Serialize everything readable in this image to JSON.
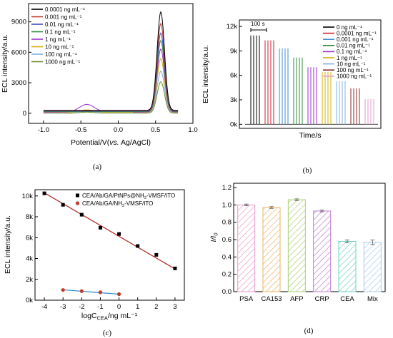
{
  "colors": {
    "black": "#000000",
    "red": "#c0392b",
    "blue": "#3c4bc9",
    "green": "#2e8b3a",
    "purple": "#9b30d0",
    "yellow": "#d4b000",
    "lightblue": "#7fb0e0",
    "brown": "#8b2a2a",
    "pink": "#e89acb",
    "mint": "#6fd3c3",
    "crimson": "#d21e2e",
    "darkred": "#b0302a",
    "steel": "#3a8fd0"
  },
  "chart_data": [
    {
      "panel_label": "(a)",
      "type": "line",
      "xlabel_main": "Potential/V(",
      "xlabel_italic": "vs.",
      "xlabel_tail": " Ag/AgCl)",
      "ylabel": "ECL intensity/a.u.",
      "xlim": [
        -1.2,
        1.0
      ],
      "ylim": [
        -1000,
        10800
      ],
      "x_ticks": [
        -1.0,
        -0.5,
        0.0,
        0.5,
        1.0
      ],
      "x_tick_labels": [
        "-1.0",
        "-0.5",
        "0.0",
        "0.5",
        "1.0"
      ],
      "y_ticks": [
        0,
        3000,
        6000,
        9000
      ],
      "y_tick_labels": [
        "0",
        "3000",
        "6000",
        "9000"
      ],
      "legend_position": "top-left",
      "series": [
        {
          "name": "0.0001 ng mL⁻¹",
          "color": "#000000",
          "peak": 9700,
          "bump": 0
        },
        {
          "name": "0.001 ng mL⁻¹",
          "color": "#c0392b",
          "peak": 8600,
          "bump": 0
        },
        {
          "name": "0.01 ng mL⁻¹",
          "color": "#3c4bc9",
          "peak": 7700,
          "bump": 0
        },
        {
          "name": "0.1 ng mL⁻¹",
          "color": "#2e8b3a",
          "peak": 7000,
          "bump": 0
        },
        {
          "name": "1 ng mL⁻¹",
          "color": "#9b30d0",
          "peak": 6200,
          "bump": 750
        },
        {
          "name": "10 ng mL⁻¹",
          "color": "#d4b000",
          "peak": 5300,
          "bump": 250
        },
        {
          "name": "100 ng mL⁻¹",
          "color": "#7fb0e0",
          "peak": 4100,
          "bump": 150
        },
        {
          "name": "1000 ng mL⁻¹",
          "color": "#6b8e23",
          "peak": 3100,
          "bump": 100
        }
      ]
    },
    {
      "panel_label": "(b)",
      "type": "bar",
      "xlabel": "Time/s",
      "ylabel": "ECL intensity/a.u.",
      "ylim": [
        -500,
        12800
      ],
      "y_ticks": [
        0,
        3000,
        6000,
        9000,
        12000
      ],
      "y_tick_labels": [
        "0k",
        "3k",
        "6k",
        "9k",
        "12k"
      ],
      "scale_bar_label": "100 s",
      "legend_position": "top-right",
      "series": [
        {
          "name": "0 ng mL⁻¹",
          "color": "#000000",
          "value": 10900
        },
        {
          "name": "0.0001 ng mL⁻¹",
          "color": "#d21e2e",
          "value": 10300
        },
        {
          "name": "0.001 ng mL⁻¹",
          "color": "#3a8fd0",
          "value": 9300
        },
        {
          "name": "0.01 ng mL⁻¹",
          "color": "#2e8b3a",
          "value": 8200
        },
        {
          "name": "0.1 ng mL⁻¹",
          "color": "#9b30d0",
          "value": 7000
        },
        {
          "name": "1 ng mL⁻¹",
          "color": "#d4b000",
          "value": 6400
        },
        {
          "name": "10 ng mL⁻¹",
          "color": "#7fb0e0",
          "value": 5300
        },
        {
          "name": "100 ng mL⁻¹",
          "color": "#8b2a2a",
          "value": 4400
        },
        {
          "name": "1000 ng mL⁻¹",
          "color": "#e89acb",
          "value": 3100
        }
      ]
    },
    {
      "panel_label": "(c)",
      "type": "scatter",
      "xlabel_main": "logC",
      "xlabel_sub": "CEA",
      "xlabel_tail": "/ng mL⁻¹",
      "ylabel": "ECL intensity/a.u.",
      "xlim": [
        -4.5,
        3.5
      ],
      "ylim": [
        0,
        10600
      ],
      "x_ticks": [
        -4,
        -3,
        -2,
        -1,
        0,
        1,
        2,
        3
      ],
      "x_tick_labels": [
        "-4",
        "-3",
        "-2",
        "-1",
        "0",
        "1",
        "2",
        "3"
      ],
      "y_ticks": [
        0,
        2000,
        4000,
        6000,
        8000,
        10000
      ],
      "y_tick_labels": [
        "0k",
        "2k",
        "4k",
        "6k",
        "8k",
        "10k"
      ],
      "legend_position": "top-right",
      "series": [
        {
          "name_main": "CEA/Ab/GA/PtNPs@NH",
          "name_sub": "2",
          "name_tail": "-VMSF/ITO",
          "color": "#000000",
          "marker": "square",
          "fit_color": "#b0302a",
          "x": [
            -4,
            -3,
            -2,
            -1,
            0,
            1,
            2,
            3
          ],
          "y": [
            10250,
            9150,
            8200,
            6950,
            6350,
            5200,
            4350,
            3050
          ],
          "fit": [
            [
              -4,
              10300
            ],
            [
              3,
              3000
            ]
          ]
        },
        {
          "name_main": "CEA/Ab/GA/NH",
          "name_sub": "2",
          "name_tail": "-VMSF/ITO",
          "color": "#c0392b",
          "marker": "circle",
          "fit_color": "#3a8fd0",
          "x": [
            -3,
            -2,
            -1,
            0
          ],
          "y": [
            980,
            870,
            760,
            580
          ],
          "fit": [
            [
              -3,
              1000
            ],
            [
              0,
              580
            ]
          ]
        }
      ]
    },
    {
      "panel_label": "(d)",
      "type": "bar",
      "ylabel_main": "I/I",
      "ylabel_sub": "0",
      "ylim": [
        0,
        1.25
      ],
      "y_ticks": [
        0.0,
        0.2,
        0.4,
        0.6,
        0.8,
        1.0,
        1.2
      ],
      "y_tick_labels": [
        "0.0",
        "0.2",
        "0.4",
        "0.6",
        "0.8",
        "1.0",
        "1.2"
      ],
      "categories": [
        "PSA",
        "CA153",
        "AFP",
        "CRP",
        "CEA",
        "Mix"
      ],
      "values": [
        1.0,
        0.97,
        1.06,
        0.93,
        0.58,
        0.57
      ],
      "errors": [
        0.01,
        0.01,
        0.01,
        0.01,
        0.015,
        0.025
      ],
      "colors": [
        "#e89acb",
        "#f0b060",
        "#a8d070",
        "#c080d0",
        "#6fd3c3",
        "#a8c8e8"
      ]
    }
  ]
}
